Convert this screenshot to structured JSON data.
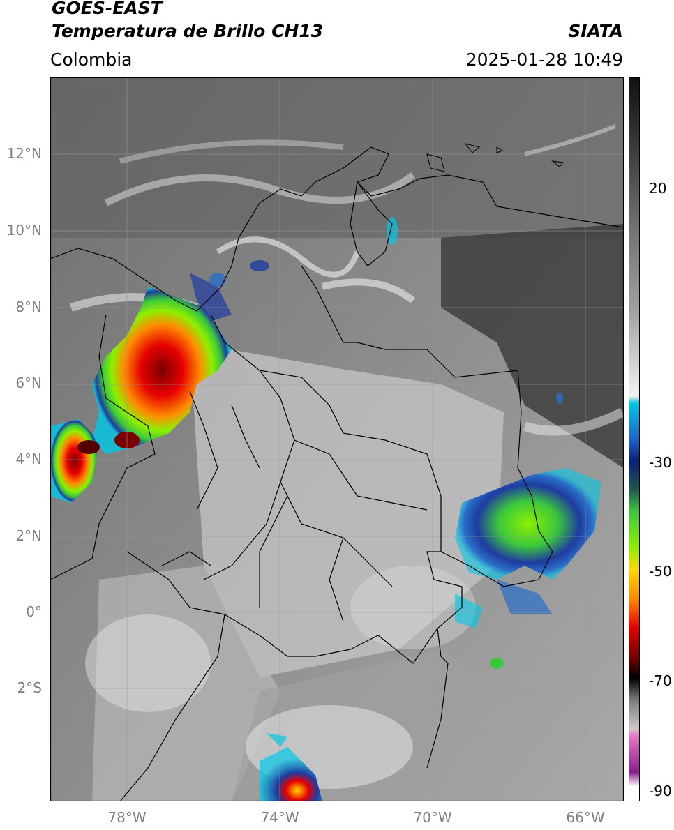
{
  "header": {
    "satellite": "GOES-EAST",
    "product": "Temperatura de Brillo CH13",
    "region": "Colombia",
    "agency": "SIATA",
    "timestamp": "2025-01-28 10:49"
  },
  "map": {
    "lat_labels": [
      "12°N",
      "10°N",
      "8°N",
      "6°N",
      "4°N",
      "2°N",
      "0°",
      "2°S"
    ],
    "lon_labels": [
      "78°W",
      "74°W",
      "70°W",
      "66°W"
    ],
    "gridlines": true
  },
  "colorbar": {
    "ticks": [
      "20",
      "-30",
      "-50",
      "-70",
      "-90"
    ],
    "colors": {
      "warm_dark": "#1a1a1a",
      "gray_mid": "#7a7a7a",
      "light": "#f2f2f2",
      "cyan": "#00c8e6",
      "blue": "#1e3ca0",
      "navy": "#0a1e78",
      "green": "#3cc83c",
      "lime": "#8cf000",
      "yellow": "#ffd700",
      "orange": "#ff8c00",
      "red": "#e60000",
      "dark_red": "#780000",
      "black": "#000000",
      "pink": "#e678c8",
      "purple": "#8c1e8c"
    }
  }
}
